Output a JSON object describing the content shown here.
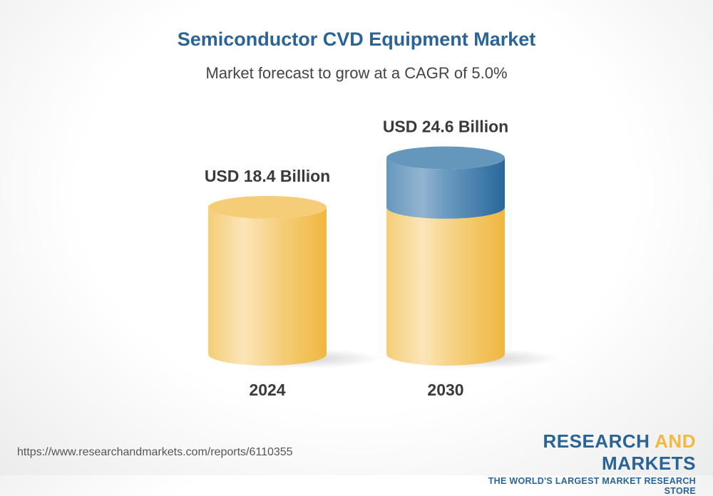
{
  "title": "Semiconductor CVD Equipment Market",
  "subtitle": "Market forecast to grow at a CAGR of 5.0%",
  "chart_data": {
    "type": "bar",
    "style": "3d-cylinder",
    "categories": [
      "2024",
      "2030"
    ],
    "values": [
      18.4,
      24.6
    ],
    "data_labels": [
      "USD 18.4 Billion",
      "USD 24.6 Billion"
    ],
    "unit": "USD Billion",
    "colors": {
      "base": "#f2c55a",
      "growth": "#3f7fb0"
    },
    "grid": false
  },
  "footer": {
    "url": "https://www.researchandmarkets.com/reports/6110355",
    "logo_part1": "RESEARCH ",
    "logo_part2": "AND",
    "logo_part3": " MARKETS",
    "tagline": "THE WORLD'S LARGEST MARKET RESEARCH STORE"
  }
}
